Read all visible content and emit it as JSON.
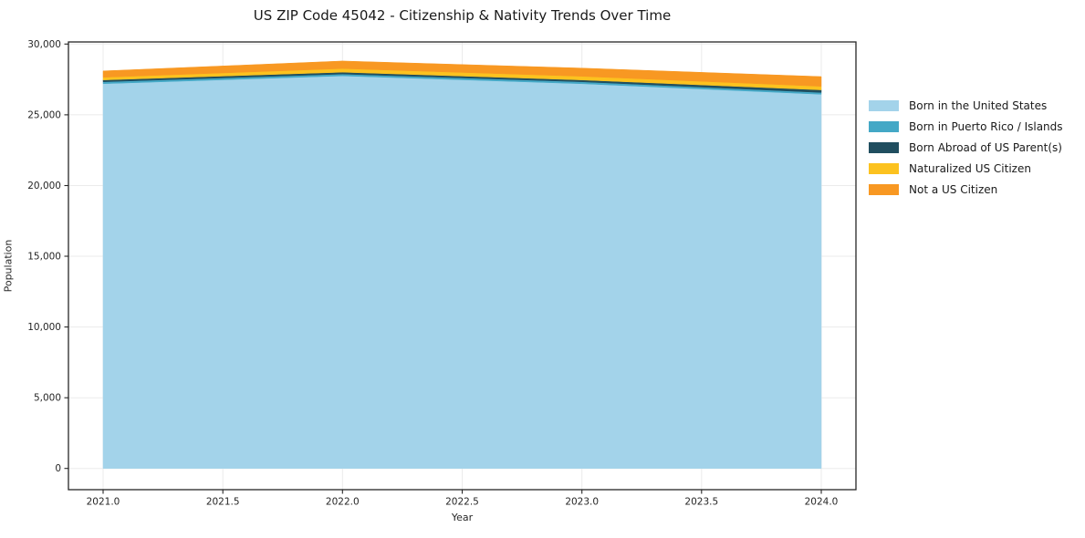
{
  "figure": {
    "title": "US ZIP Code 45042 - Citizenship & Nativity Trends Over Time"
  },
  "chart_data": {
    "type": "area",
    "stacked": true,
    "title": "US ZIP Code 45042 - Citizenship & Nativity Trends Over Time",
    "xlabel": "Year",
    "ylabel": "Population",
    "x": [
      2021,
      2022,
      2023,
      2024
    ],
    "series": [
      {
        "name": "Born in the United States",
        "color": "#a3d3ea",
        "values": [
          27200,
          27750,
          27200,
          26450
        ]
      },
      {
        "name": "Born in Puerto Rico / Islands",
        "color": "#44a8c6",
        "values": [
          130,
          130,
          130,
          130
        ]
      },
      {
        "name": "Born Abroad of US Parent(s)",
        "color": "#204e5f",
        "values": [
          130,
          130,
          130,
          180
        ]
      },
      {
        "name": "Naturalized US Citizen",
        "color": "#fcc21f",
        "values": [
          190,
          260,
          260,
          250
        ]
      },
      {
        "name": "Not a US Citizen",
        "color": "#f89822",
        "values": [
          450,
          530,
          580,
          690
        ]
      }
    ],
    "stack_totals": [
      28100,
      28800,
      28300,
      27700
    ],
    "xlim": [
      2020.855,
      2024.145
    ],
    "ylim": [
      -1500,
      30150
    ],
    "xticks": [
      2021.0,
      2021.5,
      2022.0,
      2022.5,
      2023.0,
      2023.5,
      2024.0
    ],
    "xtick_labels": [
      "2021.0",
      "2021.5",
      "2022.0",
      "2022.5",
      "2023.0",
      "2023.5",
      "2024.0"
    ],
    "yticks": [
      0,
      5000,
      10000,
      15000,
      20000,
      25000,
      30000
    ],
    "ytick_labels": [
      "0",
      "5,000",
      "10,000",
      "15,000",
      "20,000",
      "25,000",
      "30,000"
    ],
    "grid": true,
    "grid_color": "#ebebeb",
    "spine_color": "#262626",
    "legend_position": "right-outside",
    "legend_frame": false
  }
}
